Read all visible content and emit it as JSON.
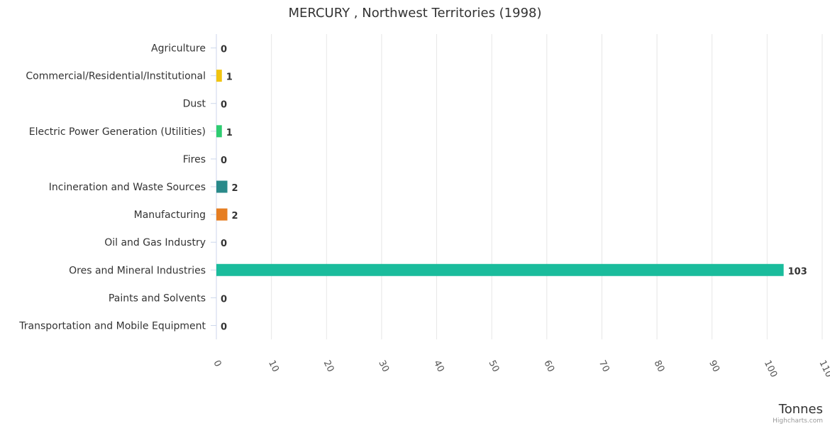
{
  "credits": "Highcharts.com",
  "chart_data": {
    "type": "bar",
    "orientation": "horizontal",
    "title": "MERCURY , Northwest Territories (1998)",
    "xlabel": "",
    "ylabel": "Tonnes",
    "categories": [
      "Agriculture",
      "Commercial/Residential/Institutional",
      "Dust",
      "Electric Power Generation (Utilities)",
      "Fires",
      "Incineration and Waste Sources",
      "Manufacturing",
      "Oil and Gas Industry",
      "Ores and Mineral Industries",
      "Paints and Solvents",
      "Transportation and Mobile Equipment"
    ],
    "values": [
      0,
      1,
      0,
      1,
      0,
      2,
      2,
      0,
      103,
      0,
      0
    ],
    "labels": [
      "0",
      "1",
      "0",
      "1",
      "0",
      "2",
      "2",
      "0",
      "103",
      "0",
      "0"
    ],
    "colors": [
      "#7cb5ec",
      "#f1c40f",
      "#2c3e50",
      "#2ecc71",
      "#e74c3c",
      "#2a8a8a",
      "#e67e22",
      "#95a5a6",
      "#1abc9c",
      "#34495e",
      "#9b59b6"
    ],
    "xlim": [
      0,
      110
    ],
    "ticks": [
      0,
      10,
      20,
      30,
      40,
      50,
      60,
      70,
      80,
      90,
      100,
      110
    ],
    "tick_labels": [
      "0",
      "10",
      "20",
      "30",
      "40",
      "50",
      "60",
      "70",
      "80",
      "90",
      "100",
      "110"
    ],
    "grid": true,
    "legend": "none"
  }
}
